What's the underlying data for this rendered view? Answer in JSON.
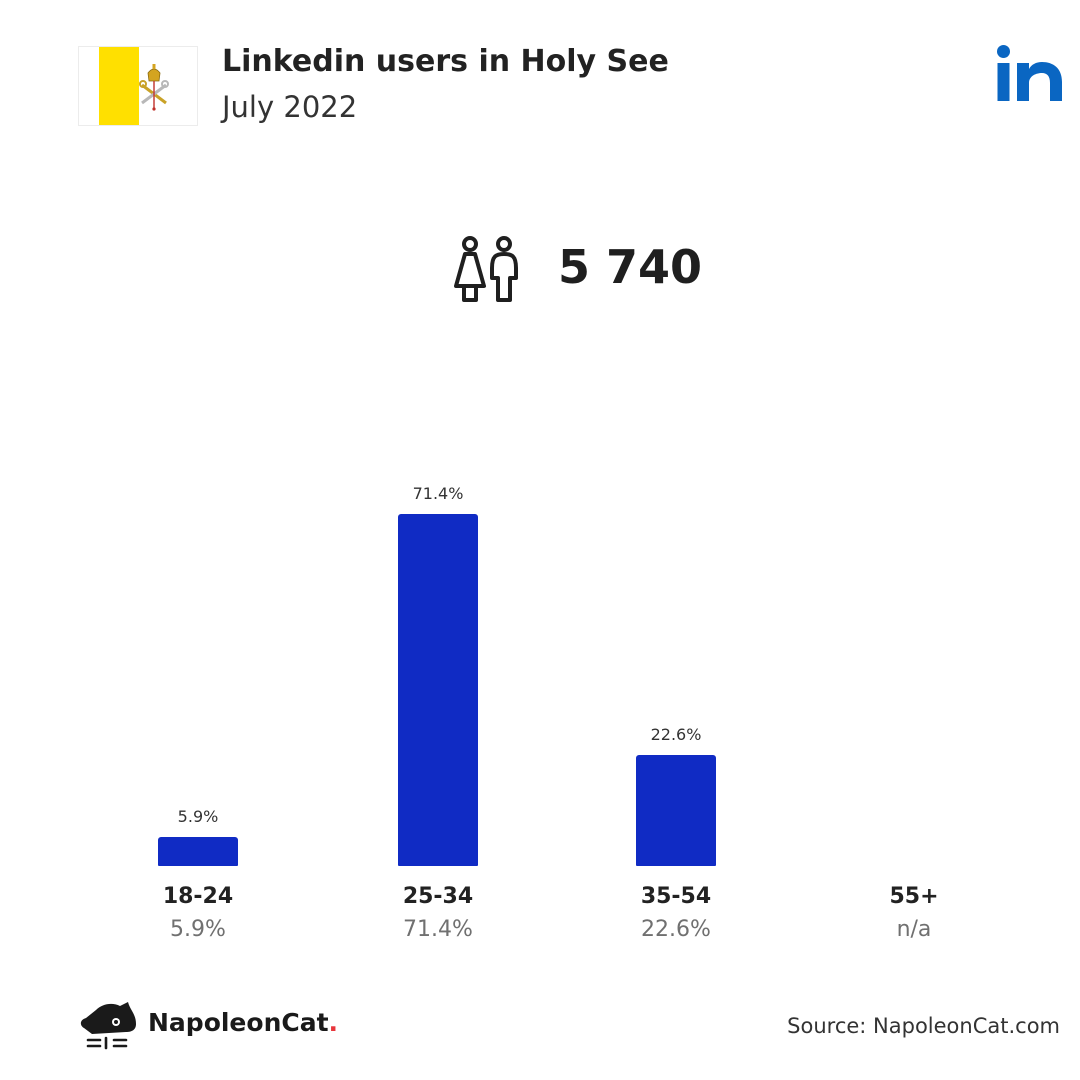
{
  "header": {
    "title": "Linkedin users in Holy See",
    "subtitle": "July 2022"
  },
  "total_users": "5 740",
  "chart_data": {
    "type": "bar",
    "categories": [
      "18-24",
      "25-34",
      "35-54",
      "55+"
    ],
    "values": [
      5.9,
      71.4,
      22.6,
      null
    ],
    "value_labels": [
      "5.9%",
      "71.4%",
      "22.6%",
      "n/a"
    ],
    "ylim": [
      0,
      71.4
    ],
    "grid": false,
    "bar_color": "#102bc4"
  },
  "footer": {
    "brand": "NapoleonCat",
    "brand_dot": ".",
    "source": "Source: NapoleonCat.com"
  },
  "colors": {
    "flag_yellow": "#ffe000",
    "linkedin_blue": "#0a66c2",
    "accent_red": "#e8353b"
  }
}
